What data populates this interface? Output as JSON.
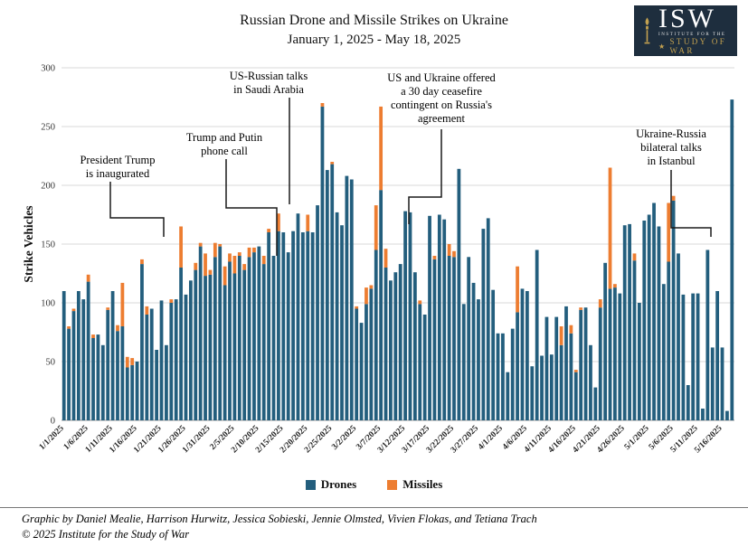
{
  "title": {
    "line1": "Russian Drone and Missile Strikes on Ukraine",
    "line2": "January 1, 2025 - May 18, 2025"
  },
  "logo": {
    "acronym": "ISW",
    "institute_line": "INSTITUTE FOR THE",
    "study_line": "STUDY OF WAR",
    "star": "★"
  },
  "footer": {
    "credit": "Graphic by Daniel Mealie, Harrison Hurwitz, Jessica Sobieski, Jennie Olmsted, Vivien Flokas, and Tetiana Trach",
    "copyright": "© 2025 Institute for the Study of War"
  },
  "chart_data": {
    "type": "bar",
    "stacked": true,
    "title": "Russian Drone and Missile Strikes on Ukraine",
    "subtitle": "January 1, 2025 - May 18, 2025",
    "ylabel": "Strike Vehicles",
    "ylim": [
      0,
      300
    ],
    "ytick_step": 50,
    "grid": true,
    "legend_position": "bottom",
    "xtick_every": 5,
    "categories": [
      "1/1/2025",
      "1/2/2025",
      "1/3/2025",
      "1/4/2025",
      "1/5/2025",
      "1/6/2025",
      "1/7/2025",
      "1/8/2025",
      "1/9/2025",
      "1/10/2025",
      "1/11/2025",
      "1/12/2025",
      "1/13/2025",
      "1/14/2025",
      "1/15/2025",
      "1/16/2025",
      "1/17/2025",
      "1/18/2025",
      "1/19/2025",
      "1/20/2025",
      "1/21/2025",
      "1/22/2025",
      "1/23/2025",
      "1/24/2025",
      "1/25/2025",
      "1/26/2025",
      "1/27/2025",
      "1/28/2025",
      "1/29/2025",
      "1/30/2025",
      "1/31/2025",
      "2/1/2025",
      "2/2/2025",
      "2/3/2025",
      "2/4/2025",
      "2/5/2025",
      "2/6/2025",
      "2/7/2025",
      "2/8/2025",
      "2/9/2025",
      "2/10/2025",
      "2/11/2025",
      "2/12/2025",
      "2/13/2025",
      "2/14/2025",
      "2/15/2025",
      "2/16/2025",
      "2/17/2025",
      "2/18/2025",
      "2/19/2025",
      "2/20/2025",
      "2/21/2025",
      "2/22/2025",
      "2/23/2025",
      "2/24/2025",
      "2/25/2025",
      "2/26/2025",
      "2/27/2025",
      "2/28/2025",
      "3/1/2025",
      "3/2/2025",
      "3/3/2025",
      "3/4/2025",
      "3/5/2025",
      "3/6/2025",
      "3/7/2025",
      "3/8/2025",
      "3/9/2025",
      "3/10/2025",
      "3/11/2025",
      "3/12/2025",
      "3/13/2025",
      "3/14/2025",
      "3/15/2025",
      "3/16/2025",
      "3/17/2025",
      "3/18/2025",
      "3/19/2025",
      "3/20/2025",
      "3/21/2025",
      "3/22/2025",
      "3/23/2025",
      "3/24/2025",
      "3/25/2025",
      "3/26/2025",
      "3/27/2025",
      "3/28/2025",
      "3/29/2025",
      "3/30/2025",
      "3/31/2025",
      "4/1/2025",
      "4/2/2025",
      "4/3/2025",
      "4/4/2025",
      "4/5/2025",
      "4/6/2025",
      "4/7/2025",
      "4/8/2025",
      "4/9/2025",
      "4/10/2025",
      "4/11/2025",
      "4/12/2025",
      "4/13/2025",
      "4/14/2025",
      "4/15/2025",
      "4/16/2025",
      "4/17/2025",
      "4/18/2025",
      "4/19/2025",
      "4/20/2025",
      "4/21/2025",
      "4/22/2025",
      "4/23/2025",
      "4/24/2025",
      "4/25/2025",
      "4/26/2025",
      "4/27/2025",
      "4/28/2025",
      "4/29/2025",
      "4/30/2025",
      "5/1/2025",
      "5/2/2025",
      "5/3/2025",
      "5/4/2025",
      "5/5/2025",
      "5/6/2025",
      "5/7/2025",
      "5/8/2025",
      "5/9/2025",
      "5/10/2025",
      "5/11/2025",
      "5/12/2025",
      "5/13/2025",
      "5/14/2025",
      "5/15/2025",
      "5/16/2025",
      "5/17/2025",
      "5/18/2025"
    ],
    "series": [
      {
        "name": "Drones",
        "color": "#235e7d",
        "values": [
          110,
          78,
          93,
          110,
          103,
          118,
          70,
          73,
          64,
          94,
          110,
          76,
          80,
          45,
          47,
          50,
          133,
          90,
          95,
          60,
          102,
          64,
          100,
          103,
          130,
          107,
          119,
          128,
          148,
          123,
          124,
          139,
          148,
          115,
          135,
          125,
          140,
          128,
          139,
          143,
          148,
          133,
          160,
          140,
          161,
          160,
          143,
          161,
          176,
          160,
          161,
          160,
          183,
          267,
          213,
          218,
          177,
          166,
          208,
          205,
          95,
          83,
          99,
          112,
          145,
          196,
          130,
          119,
          126,
          133,
          178,
          177,
          126,
          99,
          90,
          174,
          137,
          175,
          171,
          140,
          139,
          214,
          99,
          139,
          117,
          103,
          163,
          172,
          111,
          74,
          74,
          41,
          78,
          92,
          112,
          110,
          46,
          145,
          55,
          88,
          56,
          88,
          64,
          97,
          74,
          41,
          94,
          96,
          64,
          28,
          96,
          134,
          112,
          113,
          108,
          166,
          167,
          136,
          100,
          170,
          175,
          185,
          165,
          116,
          135,
          187,
          142,
          107,
          30,
          108,
          108,
          10,
          145,
          62,
          110,
          62,
          8,
          273
        ]
      },
      {
        "name": "Missiles",
        "color": "#ed7d31",
        "values": [
          0,
          2,
          2,
          0,
          0,
          6,
          3,
          0,
          0,
          2,
          0,
          5,
          37,
          9,
          6,
          0,
          4,
          7,
          0,
          0,
          0,
          0,
          3,
          0,
          35,
          0,
          0,
          6,
          3,
          19,
          4,
          12,
          2,
          16,
          7,
          15,
          3,
          5,
          8,
          4,
          0,
          7,
          3,
          0,
          15,
          0,
          0,
          0,
          0,
          0,
          14,
          0,
          0,
          3,
          0,
          2,
          0,
          0,
          0,
          0,
          2,
          0,
          14,
          3,
          38,
          71,
          16,
          0,
          0,
          0,
          0,
          0,
          0,
          3,
          0,
          0,
          3,
          0,
          0,
          10,
          5,
          0,
          0,
          0,
          0,
          0,
          0,
          0,
          0,
          0,
          0,
          0,
          0,
          39,
          0,
          0,
          0,
          0,
          0,
          0,
          0,
          0,
          16,
          0,
          7,
          2,
          2,
          0,
          0,
          0,
          7,
          0,
          103,
          3,
          0,
          0,
          0,
          6,
          0,
          0,
          0,
          0,
          0,
          0,
          50,
          4,
          0,
          0,
          0,
          0,
          0,
          0,
          0,
          0,
          0,
          0,
          0,
          0
        ]
      }
    ],
    "annotations": [
      {
        "id": "trump-inaugurated",
        "lines": [
          "President Trump",
          "is inaugurated"
        ],
        "anchor_date": "1/20/2025"
      },
      {
        "id": "trump-putin-call",
        "lines": [
          "Trump and Putin",
          "phone call"
        ],
        "anchor_date": "2/12/2025"
      },
      {
        "id": "saudi-talks",
        "lines": [
          "US-Russian talks",
          "in Saudi Arabia"
        ],
        "anchor_date": "2/18/2025"
      },
      {
        "id": "ceasefire-offer",
        "lines": [
          "US and Ukraine offered",
          "a 30 day ceasefire",
          "contingent on Russia's",
          "agreement"
        ],
        "anchor_date": "3/11/2025"
      },
      {
        "id": "istanbul-talks",
        "lines": [
          "Ukraine-Russia",
          "bilateral talks",
          "in Istanbul"
        ],
        "anchor_date": "5/16/2025"
      }
    ]
  }
}
